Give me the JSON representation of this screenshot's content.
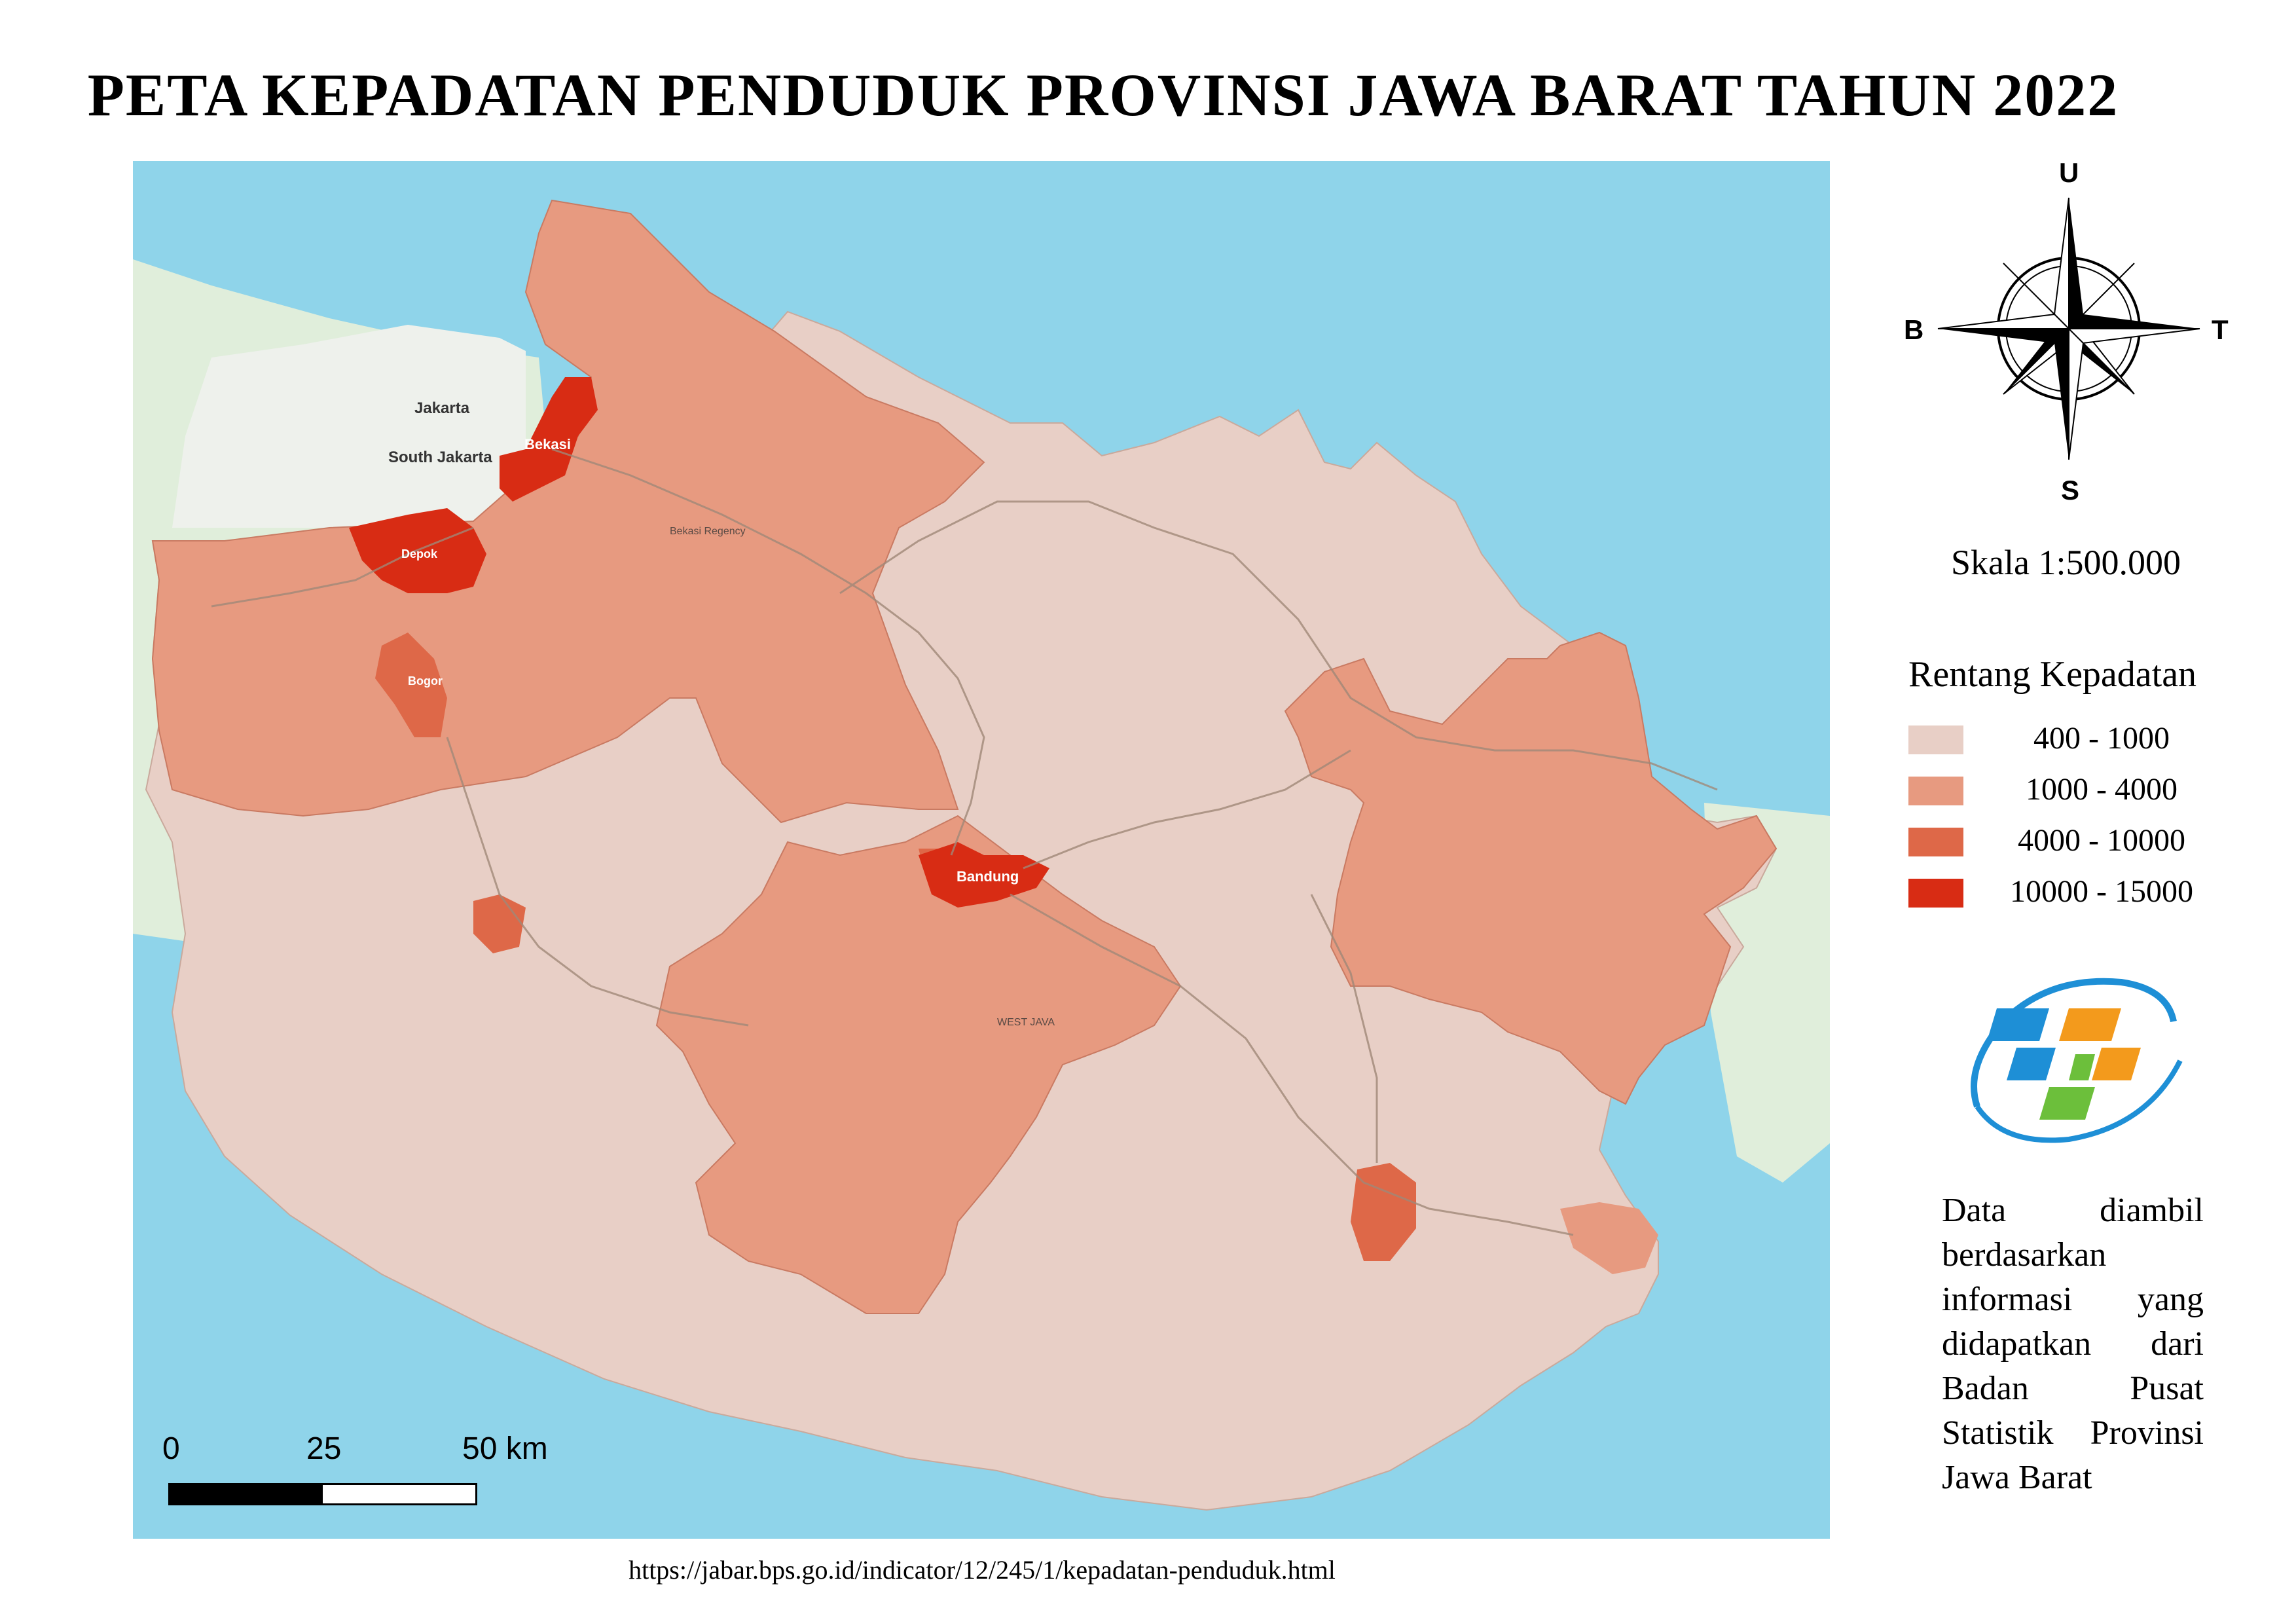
{
  "title": "PETA KEPADATAN PENDUDUK PROVINSI JAWA BARAT TAHUN 2022",
  "compass": {
    "north": "U",
    "south": "S",
    "west": "B",
    "east": "T"
  },
  "scale_ratio": "Skala 1:500.000",
  "legend": {
    "title": "Rentang Kepadatan",
    "items": [
      {
        "label": "400 - 1000",
        "color": "#e8cfc6"
      },
      {
        "label": "1000 - 4000",
        "color": "#e79a80"
      },
      {
        "label": "4000 - 10000",
        "color": "#de6848"
      },
      {
        "label": "10000 - 15000",
        "color": "#d82c14"
      }
    ]
  },
  "scalebar": {
    "labels": [
      "0",
      "25",
      "50 km"
    ]
  },
  "map": {
    "colors": {
      "sea": "#8fd4ea",
      "land_outside": "#e0eedb",
      "jakarta": "#eef1ec"
    },
    "places": [
      "Bekasi",
      "South Jakarta",
      "Jakarta",
      "Depok",
      "Bogor",
      "Bandung",
      "Bekasi Regency",
      "WEST JAVA"
    ]
  },
  "note": "Data diambil berdasarkan informasi yang didapatkan dari Badan Pusat Statistik Provinsi Jawa Barat",
  "source_url": "https://jabar.bps.go.id/indicator/12/245/1/kepadatan-penduduk.html",
  "bps_logo_colors": {
    "blue": "#1e8fd6",
    "orange": "#f39a1c",
    "green": "#6cbf3b"
  }
}
